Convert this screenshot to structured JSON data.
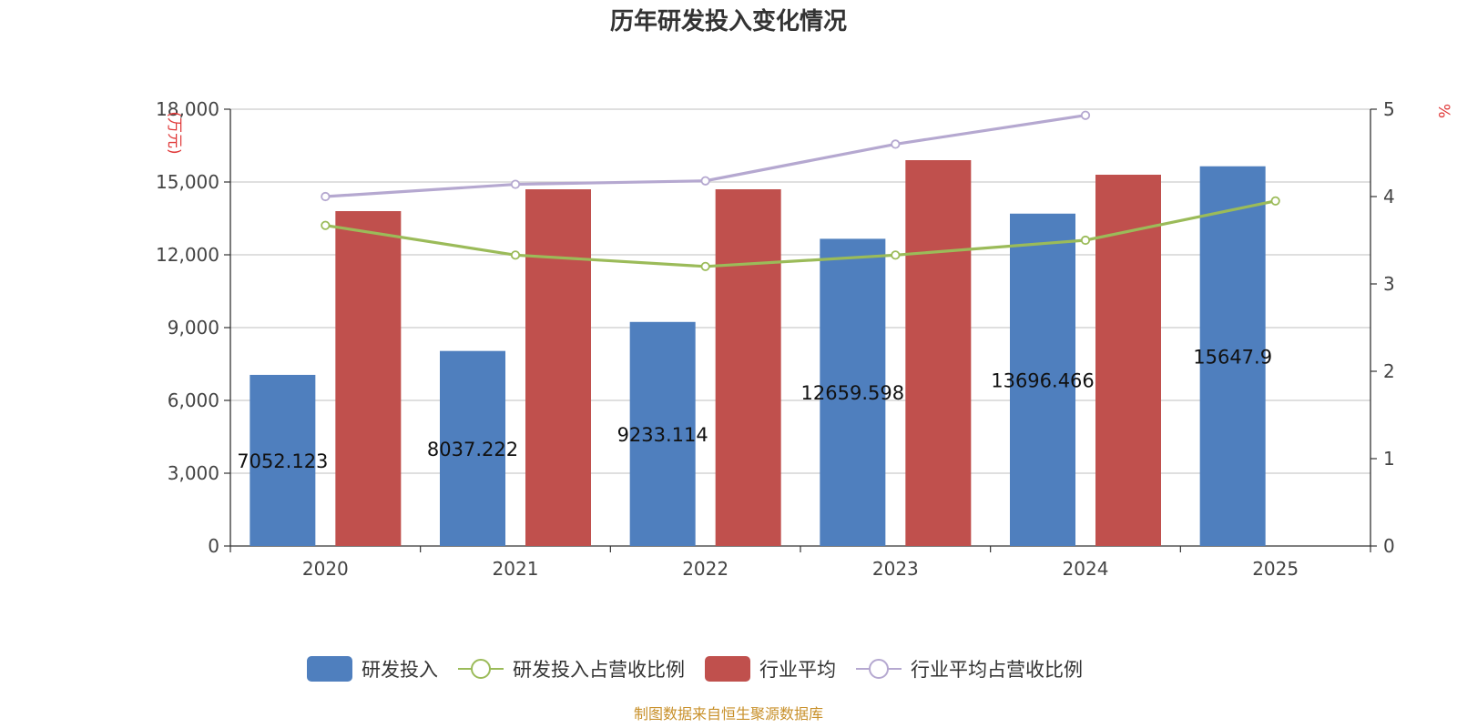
{
  "chart_data": {
    "type": "bar",
    "title": "历年研发投入变化情况",
    "categories": [
      "2020",
      "2021",
      "2022",
      "2023",
      "2024",
      "2025"
    ],
    "y_left": {
      "unit": "(万元)",
      "ylim": [
        0,
        18000
      ],
      "ticks": [
        "0",
        "3,000",
        "6,000",
        "9,000",
        "12,000",
        "15,000",
        "18,000"
      ]
    },
    "y_right": {
      "unit": "%",
      "ylim": [
        0,
        5
      ],
      "ticks": [
        "0",
        "1",
        "2",
        "3",
        "4",
        "5"
      ]
    },
    "grid": true,
    "legend_position": "bottom",
    "series": [
      {
        "name": "研发投入",
        "kind": "bar",
        "axis": "left",
        "color": "#4f7fbe",
        "values": [
          7052.123,
          8037.222,
          9233.114,
          12659.598,
          13696.466,
          15647.9
        ],
        "labels": [
          "7052.123",
          "8037.222",
          "9233.114",
          "12659.598",
          "13696.466",
          "15647.9"
        ]
      },
      {
        "name": "研发投入占营收比例",
        "kind": "line",
        "axis": "right",
        "color": "#9bbb59",
        "values": [
          3.67,
          3.33,
          3.2,
          3.33,
          3.5,
          3.95
        ]
      },
      {
        "name": "行业平均",
        "kind": "bar",
        "axis": "left",
        "color": "#c0504d",
        "values": [
          13800,
          14700,
          14700,
          15900,
          15300,
          null
        ]
      },
      {
        "name": "行业平均占营收比例",
        "kind": "line",
        "axis": "right",
        "color": "#b5a8d0",
        "values": [
          4.0,
          4.14,
          4.18,
          4.6,
          4.93,
          null
        ]
      }
    ],
    "source": "制图数据来自恒生聚源数据库"
  }
}
